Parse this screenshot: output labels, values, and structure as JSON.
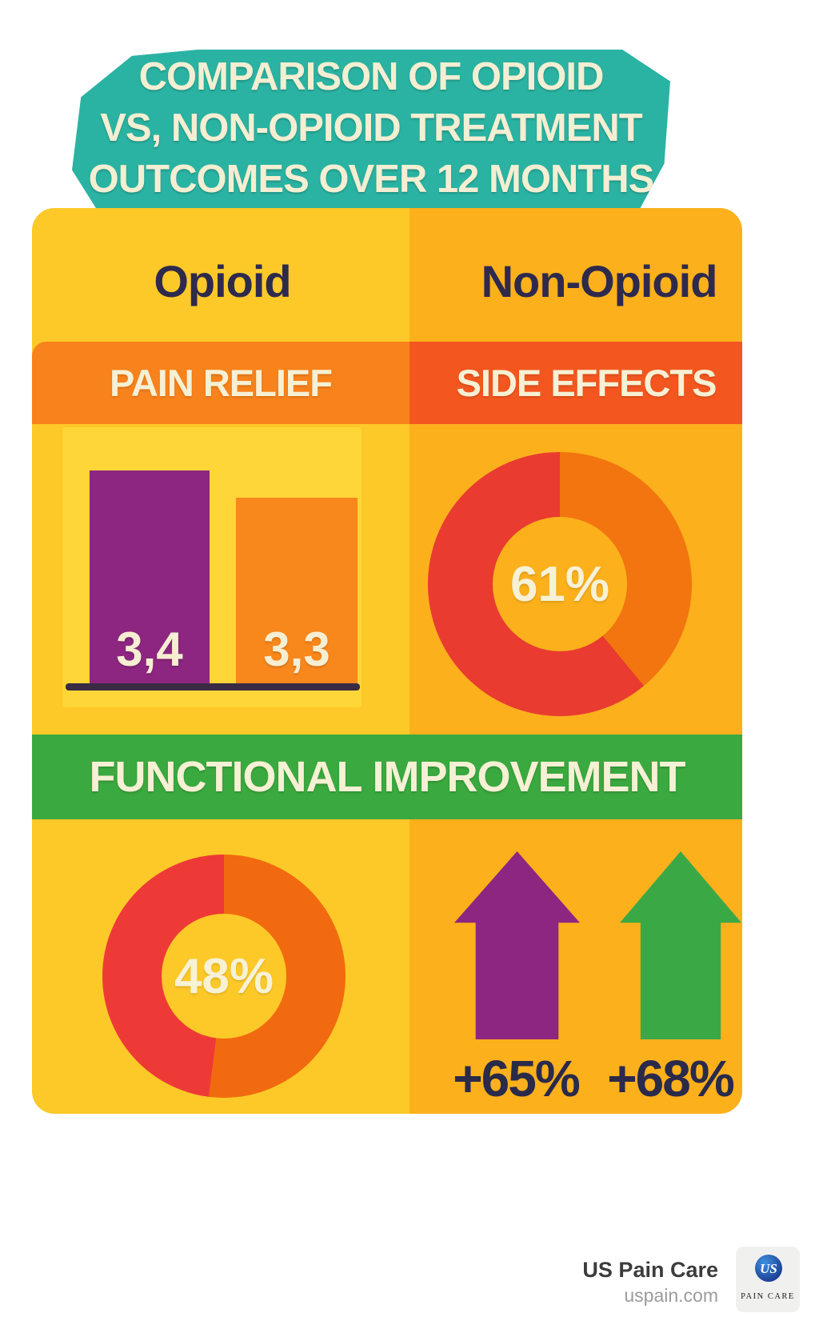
{
  "title": {
    "lines": [
      "COMPARISON OF OPIOID",
      "VS, NON-OPIOID TREATMENT",
      "OUTCOMES OVER 12 MONTHS"
    ],
    "bg": "#2ab3a2",
    "text_color": "#f4eed2"
  },
  "card": {
    "left_column_bg": "#fdc928",
    "right_column_bg": "#fbb01c"
  },
  "columns": {
    "left": "Opioid",
    "right": "Non-Opioid",
    "header_color": "#2e2a4d"
  },
  "bands": {
    "pain_relief": {
      "label": "PAIN RELIEF",
      "bg": "#f8821b"
    },
    "side_effects": {
      "label": "SIDE EFFECTS",
      "bg": "#f3571f"
    },
    "functional_improvement": {
      "label": "FUNCTIONAL IMPROVEMENT",
      "bg": "#3aa93f"
    },
    "text_color": "#f6f0d4"
  },
  "chart_data": [
    {
      "type": "bar",
      "section": "PAIN RELIEF",
      "categories": [
        "Opioid",
        "Non-Opioid"
      ],
      "values": [
        3.4,
        3.3
      ],
      "value_labels": [
        "3,4",
        "3,3"
      ],
      "colors": [
        "#8d2680",
        "#f8871c"
      ],
      "baseline_color": "#3a2b45"
    },
    {
      "type": "pie",
      "section": "SIDE EFFECTS",
      "column": "Non-Opioid",
      "label": "61%",
      "values": [
        61,
        39
      ],
      "colors": [
        "#e93b30",
        "#f2750f"
      ]
    },
    {
      "type": "pie",
      "section": "FUNCTIONAL IMPROVEMENT",
      "column": "Opioid",
      "label": "48%",
      "values": [
        48,
        52
      ],
      "colors": [
        "#ee3a36",
        "#f26a0f"
      ]
    },
    {
      "type": "arrow",
      "section": "FUNCTIONAL IMPROVEMENT",
      "categories": [
        "Opioid",
        "Non-Opioid"
      ],
      "values": [
        "+65%",
        "+68%"
      ],
      "colors": [
        "#8d2680",
        "#3aa845"
      ]
    }
  ],
  "footer": {
    "brand": "US Pain Care",
    "website": "uspain.com",
    "logo_monogram": "US",
    "logo_caption": "PAIN CARE"
  }
}
